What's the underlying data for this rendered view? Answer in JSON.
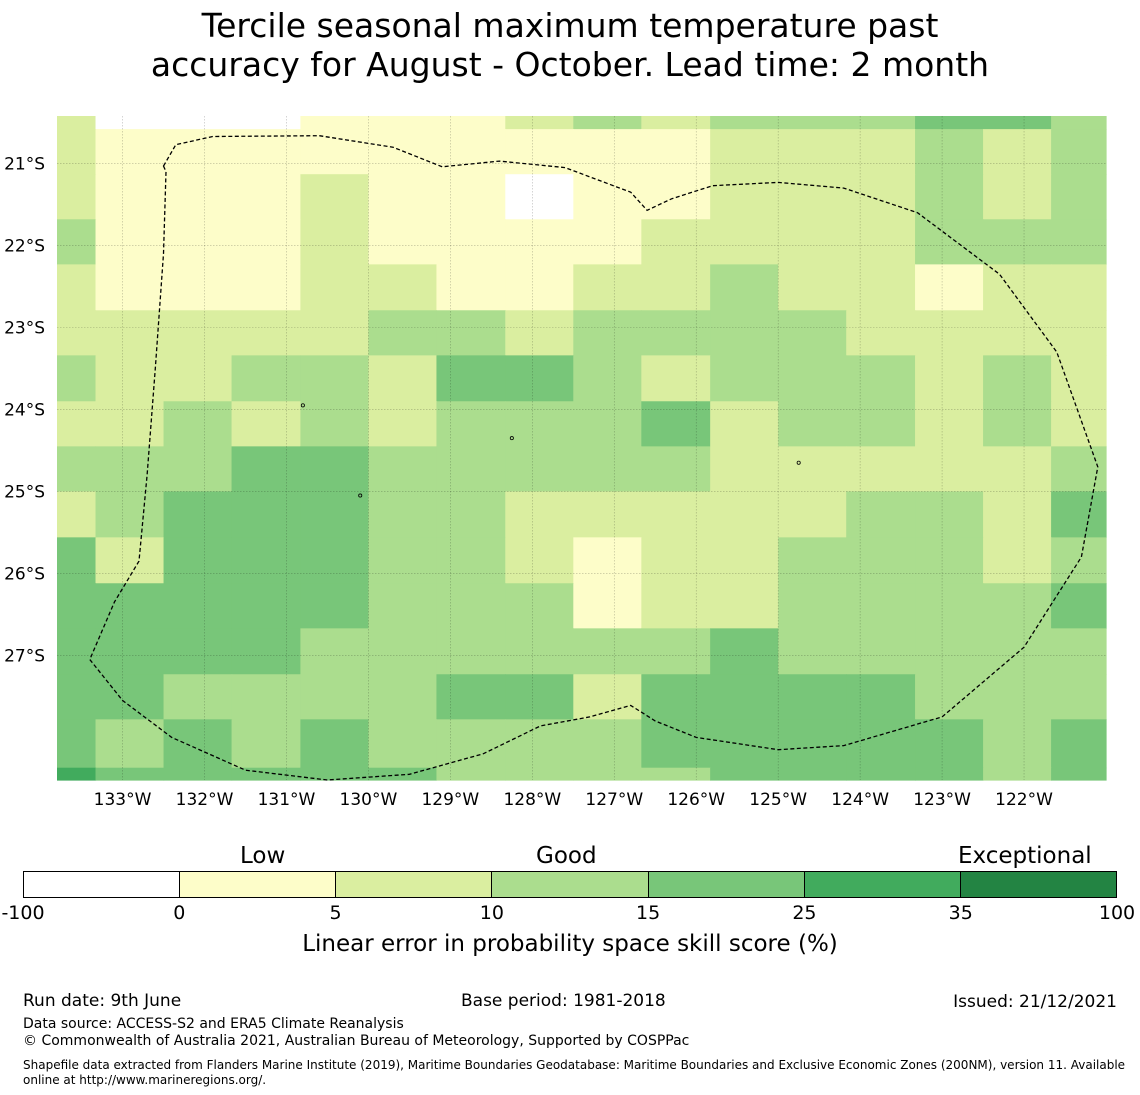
{
  "title": {
    "line1": "Tercile seasonal maximum temperature past",
    "line2": "accuracy for August - October. Lead time: 2 month"
  },
  "chart_data": {
    "type": "heatmap",
    "region_outline": "dashed",
    "grid": true,
    "x_axis": {
      "ticks": [
        133,
        132,
        131,
        130,
        129,
        128,
        127,
        126,
        125,
        124,
        123,
        122
      ],
      "tick_labels": [
        "133°W",
        "132°W",
        "131°W",
        "130°W",
        "129°W",
        "128°W",
        "127°W",
        "126°W",
        "125°W",
        "124°W",
        "123°W",
        "122°W"
      ],
      "range": [
        133.8,
        121.0
      ]
    },
    "y_axis": {
      "ticks": [
        21,
        22,
        23,
        24,
        25,
        26,
        27
      ],
      "tick_labels": [
        "21°S",
        "22°S",
        "23°S",
        "24°S",
        "25°S",
        "26°S",
        "27°S"
      ],
      "range": [
        20.42,
        28.52
      ]
    },
    "cell_columns_lon": [
      133.8,
      133.33,
      132.5,
      131.67,
      130.83,
      130.0,
      129.17,
      128.33,
      127.5,
      126.67,
      125.83,
      125.0,
      124.17,
      123.33,
      122.5,
      121.67,
      121.0
    ],
    "cell_rows_lat": [
      20.42,
      20.58,
      21.13,
      21.68,
      22.23,
      22.79,
      23.34,
      23.9,
      24.45,
      25.0,
      25.56,
      26.12,
      26.67,
      27.23,
      27.78,
      28.37,
      28.52
    ],
    "skill_class_grid": [
      [
        2,
        0,
        0,
        0,
        1,
        1,
        1,
        2,
        3,
        2,
        3,
        3,
        3,
        4,
        4,
        3
      ],
      [
        2,
        1,
        1,
        1,
        1,
        1,
        1,
        1,
        1,
        1,
        2,
        2,
        2,
        3,
        2,
        3
      ],
      [
        2,
        1,
        1,
        1,
        2,
        1,
        1,
        0,
        1,
        1,
        2,
        2,
        2,
        3,
        2,
        3
      ],
      [
        3,
        1,
        1,
        1,
        2,
        1,
        1,
        1,
        1,
        2,
        2,
        2,
        2,
        3,
        3,
        3
      ],
      [
        2,
        1,
        1,
        1,
        2,
        2,
        1,
        1,
        2,
        2,
        3,
        2,
        2,
        1,
        2,
        2
      ],
      [
        2,
        2,
        2,
        2,
        2,
        3,
        3,
        2,
        3,
        3,
        3,
        3,
        2,
        2,
        2,
        2
      ],
      [
        3,
        2,
        2,
        3,
        3,
        2,
        4,
        4,
        3,
        2,
        3,
        3,
        3,
        2,
        3,
        2
      ],
      [
        2,
        2,
        3,
        2,
        3,
        2,
        3,
        3,
        3,
        4,
        2,
        3,
        3,
        2,
        3,
        2
      ],
      [
        3,
        3,
        3,
        4,
        4,
        3,
        3,
        3,
        3,
        3,
        2,
        2,
        2,
        2,
        2,
        3
      ],
      [
        2,
        3,
        4,
        4,
        4,
        3,
        3,
        2,
        2,
        2,
        2,
        2,
        3,
        3,
        2,
        4
      ],
      [
        4,
        2,
        4,
        4,
        4,
        3,
        3,
        2,
        1,
        2,
        2,
        3,
        3,
        3,
        2,
        3
      ],
      [
        4,
        4,
        4,
        4,
        4,
        3,
        3,
        3,
        1,
        2,
        2,
        3,
        3,
        3,
        3,
        4
      ],
      [
        4,
        4,
        4,
        4,
        3,
        3,
        3,
        3,
        3,
        3,
        4,
        3,
        3,
        3,
        3,
        3
      ],
      [
        4,
        4,
        3,
        3,
        3,
        3,
        4,
        4,
        2,
        4,
        4,
        4,
        4,
        3,
        3,
        3
      ],
      [
        4,
        3,
        4,
        3,
        4,
        3,
        3,
        3,
        3,
        4,
        4,
        4,
        4,
        4,
        3,
        4
      ],
      [
        5,
        4,
        4,
        4,
        4,
        4,
        3,
        3,
        3,
        3,
        4,
        4,
        4,
        4,
        3,
        4
      ]
    ],
    "outline_lonlat": [
      [
        132.5,
        21.03
      ],
      [
        132.35,
        20.77
      ],
      [
        131.9,
        20.67
      ],
      [
        130.6,
        20.66
      ],
      [
        129.7,
        20.8
      ],
      [
        129.1,
        21.04
      ],
      [
        128.4,
        20.97
      ],
      [
        127.6,
        21.05
      ],
      [
        126.8,
        21.35
      ],
      [
        126.6,
        21.57
      ],
      [
        126.3,
        21.43
      ],
      [
        125.8,
        21.27
      ],
      [
        125.0,
        21.23
      ],
      [
        124.2,
        21.3
      ],
      [
        123.3,
        21.6
      ],
      [
        122.3,
        22.35
      ],
      [
        121.6,
        23.3
      ],
      [
        121.1,
        24.7
      ],
      [
        121.3,
        25.8
      ],
      [
        122.0,
        26.9
      ],
      [
        123.0,
        27.75
      ],
      [
        124.2,
        28.1
      ],
      [
        125.0,
        28.15
      ],
      [
        126.0,
        28.0
      ],
      [
        126.5,
        27.8
      ],
      [
        126.8,
        27.61
      ],
      [
        127.3,
        27.75
      ],
      [
        127.9,
        27.86
      ],
      [
        128.6,
        28.2
      ],
      [
        129.5,
        28.45
      ],
      [
        130.5,
        28.52
      ],
      [
        131.5,
        28.4
      ],
      [
        132.4,
        28.0
      ],
      [
        133.0,
        27.55
      ],
      [
        133.4,
        27.05
      ],
      [
        133.1,
        26.35
      ],
      [
        132.8,
        25.85
      ],
      [
        132.7,
        24.8
      ],
      [
        132.6,
        23.5
      ],
      [
        132.5,
        22.1
      ],
      [
        132.47,
        21.1
      ],
      [
        132.5,
        21.03
      ]
    ],
    "island_markers_lonlat": [
      [
        130.8,
        23.95
      ],
      [
        128.25,
        24.35
      ],
      [
        130.1,
        25.05
      ],
      [
        124.75,
        24.65
      ]
    ],
    "colorbar": {
      "boundaries": [
        -100,
        0,
        5,
        10,
        15,
        25,
        35,
        100
      ],
      "tick_labels": [
        "-100",
        "0",
        "5",
        "10",
        "15",
        "25",
        "35",
        "100"
      ],
      "colors": [
        "#ffffff",
        "#fdfdc9",
        "#daeea0",
        "#abdd8e",
        "#78c679",
        "#41ab5d",
        "#238443"
      ],
      "category_labels": [
        "Low",
        "Good",
        "Exceptional"
      ],
      "label": "Linear error in probability space skill score (%)"
    }
  },
  "footer": {
    "run_date": "Run date: 9th June",
    "base_period": "Base period: 1981-2018",
    "issued": "Issued: 21/12/2021",
    "data_source": "Data source: ACCESS-S2 and ERA5 Climate Reanalysis",
    "copyright": "© Commonwealth of Australia 2021, Australian Bureau of Meteorology, Supported by COSPPac",
    "shapefile_line1": "Shapefile data extracted from Flanders Marine Institute (2019), Maritime Boundaries Geodatabase: Maritime Boundaries and Exclusive Economic Zones (200NM), version 11. Available",
    "shapefile_line2": "online at http://www.marineregions.org/."
  }
}
